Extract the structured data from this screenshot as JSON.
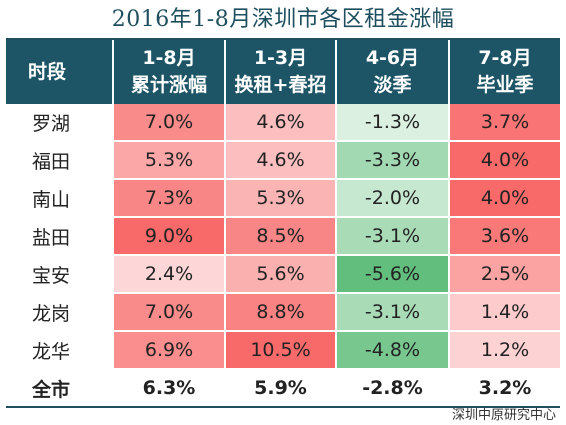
{
  "title": "2016年1-8月深圳市各区租金涨幅",
  "source": "深圳中原研究中心",
  "chart_data": {
    "type": "heatmap",
    "title": "2016年1-8月深圳市各区租金涨幅",
    "header_first": "时段",
    "columns": [
      {
        "line1": "1-8月",
        "line2": "累计涨幅"
      },
      {
        "line1": "1-3月",
        "line2": "换租+春招"
      },
      {
        "line1": "4-6月",
        "line2": "淡季"
      },
      {
        "line1": "7-8月",
        "line2": "毕业季"
      }
    ],
    "rows": [
      {
        "name": "罗湖",
        "values": [
          7.0,
          4.6,
          -1.3,
          3.7
        ],
        "labels": [
          "7.0%",
          "4.6%",
          "-1.3%",
          "3.7%"
        ],
        "group_start": false
      },
      {
        "name": "福田",
        "values": [
          5.3,
          4.6,
          -3.3,
          4.0
        ],
        "labels": [
          "5.3%",
          "4.6%",
          "-3.3%",
          "4.0%"
        ],
        "group_start": true
      },
      {
        "name": "南山",
        "values": [
          7.3,
          5.3,
          -2.0,
          4.0
        ],
        "labels": [
          "7.3%",
          "5.3%",
          "-2.0%",
          "4.0%"
        ],
        "group_start": false
      },
      {
        "name": "盐田",
        "values": [
          9.0,
          8.5,
          -3.1,
          3.6
        ],
        "labels": [
          "9.0%",
          "8.5%",
          "-3.1%",
          "3.6%"
        ],
        "group_start": false
      },
      {
        "name": "宝安",
        "values": [
          2.4,
          5.6,
          -5.6,
          2.5
        ],
        "labels": [
          "2.4%",
          "5.6%",
          "-5.6%",
          "2.5%"
        ],
        "group_start": true
      },
      {
        "name": "龙岗",
        "values": [
          7.0,
          8.8,
          -3.1,
          1.4
        ],
        "labels": [
          "7.0%",
          "8.8%",
          "-3.1%",
          "1.4%"
        ],
        "group_start": false
      },
      {
        "name": "龙华",
        "values": [
          6.9,
          10.5,
          -4.8,
          1.2
        ],
        "labels": [
          "6.9%",
          "10.5%",
          "-4.8%",
          "1.2%"
        ],
        "group_start": false
      }
    ],
    "total": {
      "name": "全市",
      "values": [
        6.3,
        5.9,
        -2.8,
        3.2
      ],
      "labels": [
        "6.3%",
        "5.9%",
        "-2.8%",
        "3.2%"
      ]
    },
    "colors": {
      "header_bg": "#1d5566",
      "positive_max": "#f86a6a",
      "negative_max": "#62be7c",
      "neutral": "#ffffff"
    }
  }
}
